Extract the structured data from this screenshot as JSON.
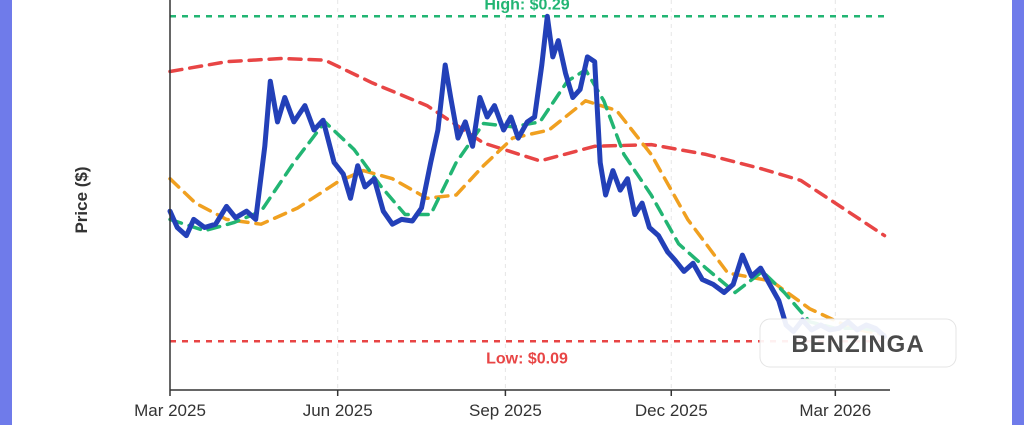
{
  "chart_data": {
    "type": "line",
    "ylabel": "Price ($)",
    "x_tick_labels": [
      "Mar 2025",
      "Jun 2025",
      "Sep 2025",
      "Dec 2025",
      "Mar 2026"
    ],
    "x_range": [
      "2025-03-01",
      "2026-03-31"
    ],
    "y_range": [
      0.06,
      0.3
    ],
    "y_ticks_visible": false,
    "grid": true,
    "reference_lines": [
      {
        "label": "High: $0.29",
        "value": 0.29,
        "color": "#22b573"
      },
      {
        "label": "Low: $0.09",
        "value": 0.09,
        "color": "#e84545"
      }
    ],
    "series": [
      {
        "style": "solid",
        "color": "#2340b8",
        "points": [
          [
            "2025-03-01",
            0.17
          ],
          [
            "2025-03-05",
            0.16
          ],
          [
            "2025-03-10",
            0.155
          ],
          [
            "2025-03-14",
            0.165
          ],
          [
            "2025-03-20",
            0.16
          ],
          [
            "2025-03-26",
            0.162
          ],
          [
            "2025-04-01",
            0.173
          ],
          [
            "2025-04-06",
            0.166
          ],
          [
            "2025-04-12",
            0.17
          ],
          [
            "2025-04-17",
            0.165
          ],
          [
            "2025-04-22",
            0.21
          ],
          [
            "2025-04-25",
            0.25
          ],
          [
            "2025-04-29",
            0.225
          ],
          [
            "2025-05-03",
            0.24
          ],
          [
            "2025-05-08",
            0.225
          ],
          [
            "2025-05-14",
            0.235
          ],
          [
            "2025-05-19",
            0.22
          ],
          [
            "2025-05-24",
            0.226
          ],
          [
            "2025-05-30",
            0.2
          ],
          [
            "2025-06-04",
            0.193
          ],
          [
            "2025-06-08",
            0.178
          ],
          [
            "2025-06-12",
            0.198
          ],
          [
            "2025-06-16",
            0.185
          ],
          [
            "2025-06-21",
            0.19
          ],
          [
            "2025-06-26",
            0.17
          ],
          [
            "2025-07-01",
            0.162
          ],
          [
            "2025-07-06",
            0.165
          ],
          [
            "2025-07-12",
            0.164
          ],
          [
            "2025-07-17",
            0.172
          ],
          [
            "2025-07-22",
            0.2
          ],
          [
            "2025-07-26",
            0.22
          ],
          [
            "2025-07-30",
            0.26
          ],
          [
            "2025-08-02",
            0.24
          ],
          [
            "2025-08-06",
            0.215
          ],
          [
            "2025-08-10",
            0.225
          ],
          [
            "2025-08-14",
            0.21
          ],
          [
            "2025-08-18",
            0.24
          ],
          [
            "2025-08-22",
            0.228
          ],
          [
            "2025-08-26",
            0.235
          ],
          [
            "2025-08-31",
            0.22
          ],
          [
            "2025-09-04",
            0.228
          ],
          [
            "2025-09-08",
            0.215
          ],
          [
            "2025-09-13",
            0.225
          ],
          [
            "2025-09-17",
            0.228
          ],
          [
            "2025-09-21",
            0.26
          ],
          [
            "2025-09-24",
            0.29
          ],
          [
            "2025-09-27",
            0.265
          ],
          [
            "2025-09-30",
            0.275
          ],
          [
            "2025-10-04",
            0.255
          ],
          [
            "2025-10-08",
            0.24
          ],
          [
            "2025-10-12",
            0.245
          ],
          [
            "2025-10-16",
            0.265
          ],
          [
            "2025-10-20",
            0.262
          ],
          [
            "2025-10-23",
            0.2
          ],
          [
            "2025-10-26",
            0.18
          ],
          [
            "2025-10-30",
            0.195
          ],
          [
            "2025-11-03",
            0.183
          ],
          [
            "2025-11-07",
            0.19
          ],
          [
            "2025-11-11",
            0.168
          ],
          [
            "2025-11-15",
            0.175
          ],
          [
            "2025-11-19",
            0.16
          ],
          [
            "2025-11-24",
            0.155
          ],
          [
            "2025-11-29",
            0.145
          ],
          [
            "2025-12-03",
            0.14
          ],
          [
            "2025-12-08",
            0.133
          ],
          [
            "2025-12-13",
            0.138
          ],
          [
            "2025-12-18",
            0.128
          ],
          [
            "2025-12-24",
            0.125
          ],
          [
            "2025-12-30",
            0.12
          ],
          [
            "2026-01-04",
            0.125
          ],
          [
            "2026-01-09",
            0.143
          ],
          [
            "2026-01-14",
            0.13
          ],
          [
            "2026-01-19",
            0.135
          ],
          [
            "2026-01-24",
            0.125
          ],
          [
            "2026-01-29",
            0.115
          ],
          [
            "2026-02-02",
            0.1
          ],
          [
            "2026-02-06",
            0.096
          ],
          [
            "2026-02-11",
            0.103
          ],
          [
            "2026-02-16",
            0.097
          ],
          [
            "2026-02-21",
            0.1
          ],
          [
            "2026-02-26",
            0.097
          ],
          [
            "2026-03-03",
            0.098
          ],
          [
            "2026-03-08",
            0.102
          ],
          [
            "2026-03-13",
            0.097
          ],
          [
            "2026-03-18",
            0.1
          ],
          [
            "2026-03-23",
            0.098
          ],
          [
            "2026-03-28",
            0.093
          ]
        ]
      },
      {
        "style": "dashed",
        "color": "#22b573",
        "points": [
          [
            "2025-03-01",
            0.165
          ],
          [
            "2025-03-20",
            0.158
          ],
          [
            "2025-04-05",
            0.163
          ],
          [
            "2025-04-20",
            0.17
          ],
          [
            "2025-05-08",
            0.2
          ],
          [
            "2025-05-25",
            0.225
          ],
          [
            "2025-06-10",
            0.208
          ],
          [
            "2025-06-25",
            0.185
          ],
          [
            "2025-07-08",
            0.168
          ],
          [
            "2025-07-22",
            0.168
          ],
          [
            "2025-08-05",
            0.2
          ],
          [
            "2025-08-20",
            0.224
          ],
          [
            "2025-09-05",
            0.222
          ],
          [
            "2025-09-20",
            0.225
          ],
          [
            "2025-10-05",
            0.25
          ],
          [
            "2025-10-15",
            0.257
          ],
          [
            "2025-10-25",
            0.238
          ],
          [
            "2025-11-05",
            0.205
          ],
          [
            "2025-11-20",
            0.18
          ],
          [
            "2025-12-05",
            0.15
          ],
          [
            "2025-12-20",
            0.135
          ],
          [
            "2026-01-05",
            0.12
          ],
          [
            "2026-01-20",
            0.133
          ],
          [
            "2026-02-01",
            0.12
          ],
          [
            "2026-02-15",
            0.102
          ],
          [
            "2026-03-01",
            0.098
          ],
          [
            "2026-03-15",
            0.098
          ],
          [
            "2026-03-28",
            0.096
          ]
        ]
      },
      {
        "style": "dashed",
        "color": "#f0a020",
        "points": [
          [
            "2025-03-01",
            0.19
          ],
          [
            "2025-03-15",
            0.175
          ],
          [
            "2025-04-01",
            0.165
          ],
          [
            "2025-04-20",
            0.162
          ],
          [
            "2025-05-10",
            0.172
          ],
          [
            "2025-06-01",
            0.188
          ],
          [
            "2025-06-15",
            0.195
          ],
          [
            "2025-07-01",
            0.19
          ],
          [
            "2025-07-20",
            0.178
          ],
          [
            "2025-08-05",
            0.18
          ],
          [
            "2025-08-20",
            0.198
          ],
          [
            "2025-09-05",
            0.215
          ],
          [
            "2025-09-25",
            0.22
          ],
          [
            "2025-10-15",
            0.238
          ],
          [
            "2025-11-01",
            0.232
          ],
          [
            "2025-11-20",
            0.205
          ],
          [
            "2025-12-10",
            0.165
          ],
          [
            "2026-01-01",
            0.132
          ],
          [
            "2026-01-25",
            0.127
          ],
          [
            "2026-02-15",
            0.11
          ],
          [
            "2026-03-10",
            0.098
          ],
          [
            "2026-03-28",
            0.094
          ]
        ]
      },
      {
        "style": "dashed",
        "color": "#e84545",
        "points": [
          [
            "2025-03-01",
            0.256
          ],
          [
            "2025-04-01",
            0.262
          ],
          [
            "2025-05-01",
            0.264
          ],
          [
            "2025-05-25",
            0.263
          ],
          [
            "2025-06-20",
            0.249
          ],
          [
            "2025-07-20",
            0.235
          ],
          [
            "2025-08-20",
            0.212
          ],
          [
            "2025-09-20",
            0.201
          ],
          [
            "2025-10-20",
            0.21
          ],
          [
            "2025-11-20",
            0.211
          ],
          [
            "2025-12-20",
            0.205
          ],
          [
            "2026-01-20",
            0.196
          ],
          [
            "2026-02-10",
            0.189
          ],
          [
            "2026-03-01",
            0.175
          ],
          [
            "2026-03-28",
            0.155
          ]
        ]
      }
    ]
  },
  "watermark": {
    "text": "BENZINGA"
  }
}
